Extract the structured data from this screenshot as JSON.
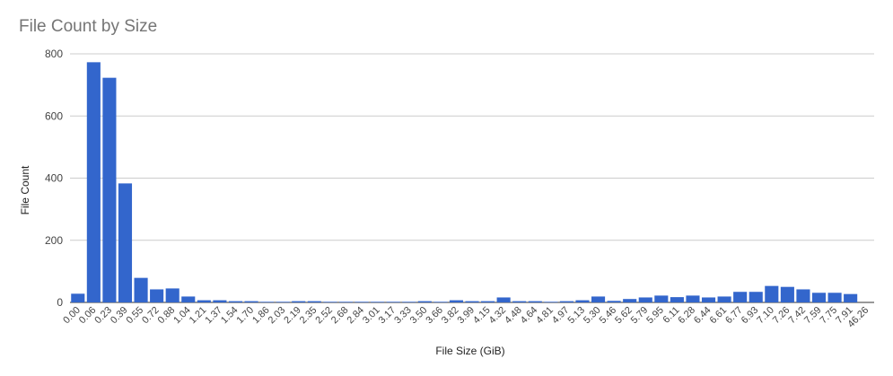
{
  "chart_data": {
    "type": "bar",
    "title": "File Count by Size",
    "xlabel": "File Size (GiB)",
    "ylabel": "File Count",
    "ylim": [
      0,
      800
    ],
    "yticks": [
      0,
      200,
      400,
      600,
      800
    ],
    "grid": true,
    "legend": "none",
    "bar_color": "#3366cc",
    "categories": [
      "0.00",
      "0.06",
      "0.23",
      "0.39",
      "0.55",
      "0.72",
      "0.88",
      "1.04",
      "1.21",
      "1.37",
      "1.54",
      "1.70",
      "1.86",
      "2.03",
      "2.19",
      "2.35",
      "2.52",
      "2.68",
      "2.84",
      "3.01",
      "3.17",
      "3.33",
      "3.50",
      "3.66",
      "3.82",
      "3.99",
      "4.15",
      "4.32",
      "4.48",
      "4.64",
      "4.81",
      "4.97",
      "5.13",
      "5.30",
      "5.46",
      "5.62",
      "5.79",
      "5.95",
      "6.11",
      "6.28",
      "6.44",
      "6.61",
      "6.77",
      "6.93",
      "7.10",
      "7.26",
      "7.42",
      "7.59",
      "7.75",
      "7.91",
      "46.26"
    ],
    "values": [
      28,
      773,
      723,
      383,
      79,
      42,
      45,
      19,
      7,
      7,
      4,
      4,
      2,
      2,
      4,
      4,
      2,
      2,
      2,
      2,
      2,
      2,
      4,
      2,
      7,
      4,
      4,
      16,
      4,
      4,
      2,
      4,
      7,
      19,
      5,
      11,
      16,
      22,
      17,
      22,
      16,
      19,
      34,
      34,
      53,
      50,
      42,
      31,
      31,
      27,
      0
    ]
  }
}
